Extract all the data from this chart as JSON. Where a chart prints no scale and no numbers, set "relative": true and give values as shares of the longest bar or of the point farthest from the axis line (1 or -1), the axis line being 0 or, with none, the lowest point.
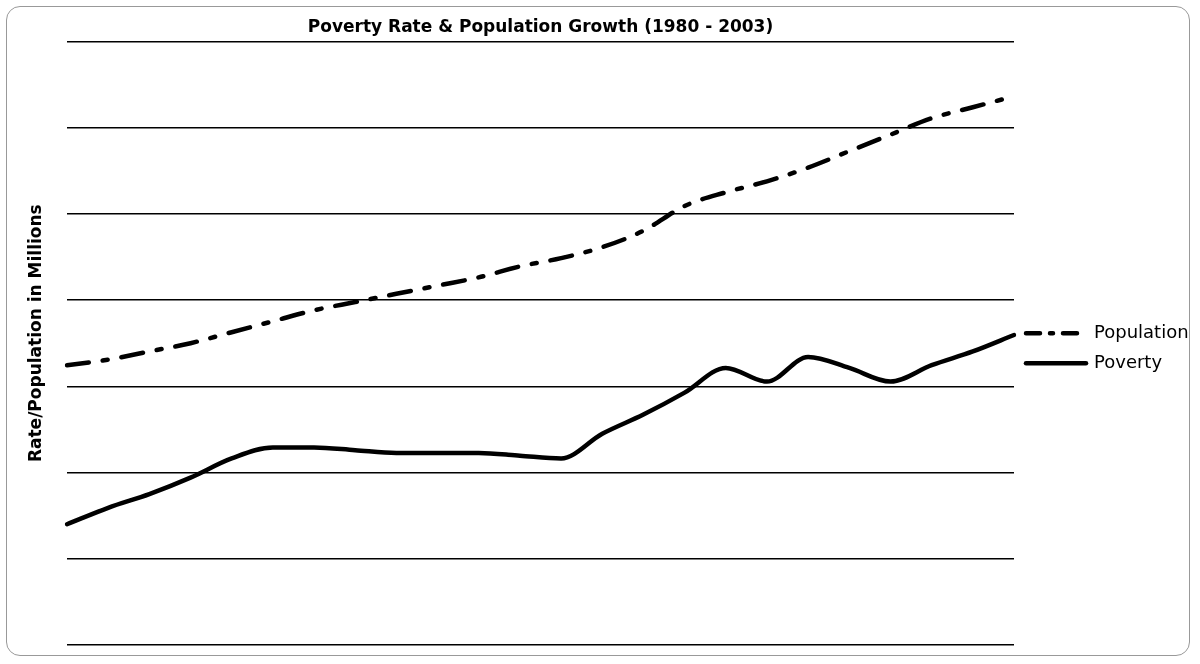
{
  "chart_data": {
    "type": "line",
    "title": "Poverty Rate & Population Growth (1980 - 2003)",
    "ylabel": "Rate/Population in Millions",
    "relative": true,
    "grid": "y",
    "legend": "right",
    "marker": "none",
    "categories": [
      null,
      null,
      null,
      null,
      null,
      null,
      null,
      null,
      null,
      null,
      null,
      null,
      null,
      null,
      null,
      null,
      null,
      null,
      null,
      null,
      null,
      null,
      null,
      null
    ],
    "series": [
      {
        "name": "Population",
        "color": "#000000",
        "line_style": "dashed",
        "values": [
          0.51,
          0.52,
          0.535,
          0.55,
          0.57,
          0.59,
          0.61,
          0.625,
          0.64,
          0.655,
          0.67,
          0.69,
          0.705,
          0.725,
          0.755,
          0.8,
          0.825,
          0.845,
          0.87,
          0.9,
          0.93,
          0.96,
          0.98,
          1
        ]
      },
      {
        "name": "Poverty",
        "color": "#000000",
        "line_style": "solid",
        "values": [
          0.22,
          0.25,
          0.275,
          0.305,
          0.34,
          0.36,
          0.36,
          0.355,
          0.35,
          0.35,
          0.35,
          0.345,
          0.34,
          0.385,
          0.42,
          0.46,
          0.505,
          0.48,
          0.525,
          0.505,
          0.48,
          0.51,
          0.535,
          0.565
        ]
      }
    ]
  }
}
